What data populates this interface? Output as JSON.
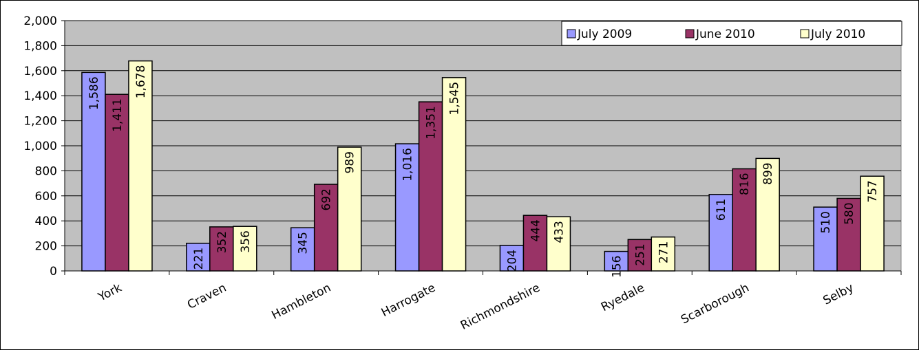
{
  "chart_data": {
    "type": "bar",
    "title": "",
    "xlabel": "",
    "ylabel": "",
    "ylim": [
      0,
      2000
    ],
    "y_ticks": [
      "0",
      "200",
      "400",
      "600",
      "800",
      "1,000",
      "1,200",
      "1,400",
      "1,600",
      "1,800",
      "2,000"
    ],
    "grid": true,
    "legend_position": "top-right",
    "categories": [
      "York",
      "Craven",
      "Hambleton",
      "Harrogate",
      "Richmondshire",
      "Ryedale",
      "Scarborough",
      "Selby"
    ],
    "series": [
      {
        "name": "July 2009",
        "color": "#9999ff",
        "values": [
          1586,
          221,
          345,
          1016,
          204,
          156,
          611,
          510
        ],
        "labels": [
          "1,586",
          "221",
          "345",
          "1,016",
          "204",
          "156",
          "611",
          "510"
        ]
      },
      {
        "name": "June 2010",
        "color": "#993366",
        "values": [
          1411,
          352,
          692,
          1351,
          444,
          251,
          816,
          580
        ],
        "labels": [
          "1,411",
          "352",
          "692",
          "1,351",
          "444",
          "251",
          "816",
          "580"
        ]
      },
      {
        "name": "July 2010",
        "color": "#ffffcc",
        "values": [
          1678,
          356,
          989,
          1545,
          433,
          271,
          899,
          757
        ],
        "labels": [
          "1,678",
          "356",
          "989",
          "1,545",
          "433",
          "271",
          "899",
          "757"
        ]
      }
    ],
    "plot_background": "#c0c0c0"
  }
}
